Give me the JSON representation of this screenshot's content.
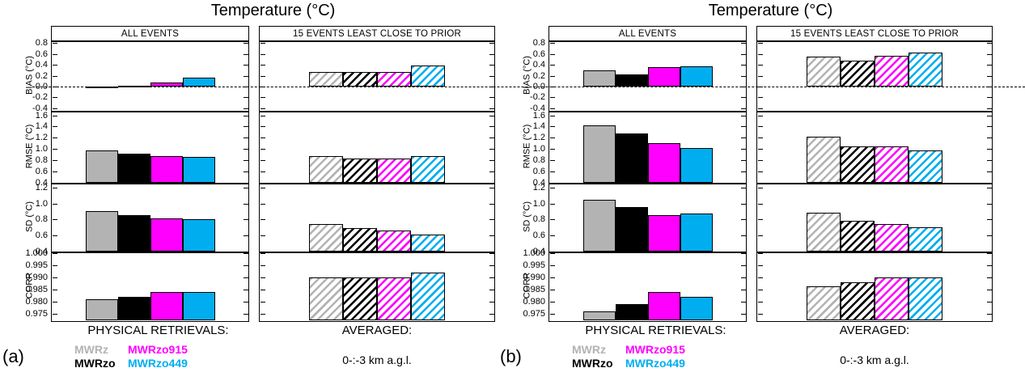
{
  "series": [
    {
      "name": "MWRz",
      "color": "#b3b3b3"
    },
    {
      "name": "MWRzo",
      "color": "#000000"
    },
    {
      "name": "MWRzo915",
      "color": "#ff00ff"
    },
    {
      "name": "MWRzo449",
      "color": "#00aeef"
    }
  ],
  "legend_layout": [
    [
      0,
      2
    ],
    [
      1,
      3
    ]
  ],
  "chart_data": [
    {
      "type": "bar",
      "panel_label": "(a)",
      "title": "Temperature (°C)",
      "column_headers": [
        "ALL EVENTS",
        "15 EVENTS LEAST CLOSE TO PRIOR"
      ],
      "column_fill": [
        "solid",
        "hatched"
      ],
      "series_names": [
        "MWRz",
        "MWRzo",
        "MWRzo915",
        "MWRzo449"
      ],
      "metrics": [
        {
          "label": "BIAS (°C)",
          "ylim": [
            -0.45,
            0.85
          ],
          "tick_values": [
            0.8,
            0.6,
            0.4,
            0.2,
            0.0,
            -0.2,
            -0.4
          ],
          "tick_labels": [
            "0.8",
            "0.6",
            "0.4",
            "0.2",
            "0.0",
            "-0.2",
            "-0.4"
          ],
          "baseline": 0.0,
          "dashed_zero_line": true,
          "columns": [
            [
              -0.02,
              0.02,
              0.07,
              0.17
            ],
            [
              0.27,
              0.27,
              0.27,
              0.38
            ]
          ]
        },
        {
          "label": "RMSE (°C)",
          "ylim": [
            0.4,
            1.68
          ],
          "tick_values": [
            1.6,
            1.4,
            1.2,
            1.0,
            0.8,
            0.6,
            0.4
          ],
          "tick_labels": [
            "1.6",
            "1.4",
            "1.2",
            "1.0",
            "0.8",
            "0.6",
            "0.4"
          ],
          "columns": [
            [
              0.97,
              0.92,
              0.87,
              0.86
            ],
            [
              0.87,
              0.83,
              0.83,
              0.87
            ]
          ]
        },
        {
          "label": "SD (°C)",
          "ylim": [
            0.4,
            1.26
          ],
          "tick_values": [
            1.2,
            1.0,
            0.8,
            0.6,
            0.4
          ],
          "tick_labels": [
            "1.2",
            "1.0",
            "0.8",
            "0.6",
            "0.4"
          ],
          "columns": [
            [
              0.91,
              0.86,
              0.81,
              0.8
            ],
            [
              0.74,
              0.69,
              0.66,
              0.61
            ]
          ]
        },
        {
          "label": "CORR",
          "ylim": [
            0.9725,
            1.0005
          ],
          "tick_values": [
            1.0,
            0.995,
            0.99,
            0.985,
            0.98,
            0.975
          ],
          "tick_labels": [
            "1.000",
            "0.995",
            "0.990",
            "0.985",
            "0.980",
            "0.975"
          ],
          "columns": [
            [
              0.981,
              0.982,
              0.984,
              0.984
            ],
            [
              0.99,
              0.99,
              0.99,
              0.992
            ]
          ]
        }
      ],
      "footer": {
        "retrievals_label": "PHYSICAL RETRIEVALS:",
        "averaged_label": "AVERAGED:",
        "averaged_value": "0-:-3 km a.g.l."
      }
    },
    {
      "type": "bar",
      "panel_label": "(b)",
      "title": "Temperature (°C)",
      "column_headers": [
        "ALL EVENTS",
        "15 EVENTS LEAST CLOSE TO PRIOR"
      ],
      "column_fill": [
        "solid",
        "hatched"
      ],
      "series_names": [
        "MWRz",
        "MWRzo",
        "MWRzo915",
        "MWRzo449"
      ],
      "metrics": [
        {
          "label": "BIAS (°C)",
          "ylim": [
            -0.45,
            0.85
          ],
          "tick_values": [
            0.8,
            0.6,
            0.4,
            0.2,
            0.0,
            -0.2,
            -0.4
          ],
          "tick_labels": [
            "0.8",
            "0.6",
            "0.4",
            "0.2",
            "0.0",
            "-0.2",
            "-0.4"
          ],
          "baseline": 0.0,
          "dashed_zero_line": true,
          "columns": [
            [
              0.3,
              0.22,
              0.36,
              0.37
            ],
            [
              0.55,
              0.47,
              0.57,
              0.62
            ]
          ]
        },
        {
          "label": "RMSE (°C)",
          "ylim": [
            0.4,
            1.68
          ],
          "tick_values": [
            1.6,
            1.4,
            1.2,
            1.0,
            0.8,
            0.6,
            0.4
          ],
          "tick_labels": [
            "1.6",
            "1.4",
            "1.2",
            "1.0",
            "0.8",
            "0.6",
            "0.4"
          ],
          "columns": [
            [
              1.42,
              1.28,
              1.1,
              1.02
            ],
            [
              1.22,
              1.05,
              1.05,
              0.98
            ]
          ]
        },
        {
          "label": "SD (°C)",
          "ylim": [
            0.4,
            1.26
          ],
          "tick_values": [
            1.2,
            1.0,
            0.8,
            0.6,
            0.4
          ],
          "tick_labels": [
            "1.2",
            "1.0",
            "0.8",
            "0.6",
            "0.4"
          ],
          "columns": [
            [
              1.05,
              0.96,
              0.86,
              0.88
            ],
            [
              0.89,
              0.78,
              0.74,
              0.7
            ]
          ]
        },
        {
          "label": "CORR",
          "ylim": [
            0.9725,
            1.0005
          ],
          "tick_values": [
            1.0,
            0.995,
            0.99,
            0.985,
            0.98,
            0.975
          ],
          "tick_labels": [
            "1.000",
            "0.995",
            "0.990",
            "0.985",
            "0.980",
            "0.975"
          ],
          "columns": [
            [
              0.976,
              0.979,
              0.984,
              0.982
            ],
            [
              0.9865,
              0.988,
              0.99,
              0.99
            ]
          ]
        }
      ],
      "footer": {
        "retrievals_label": "PHYSICAL RETRIEVALS:",
        "averaged_label": "AVERAGED:",
        "averaged_value": "0-:-3 km a.g.l."
      }
    }
  ]
}
